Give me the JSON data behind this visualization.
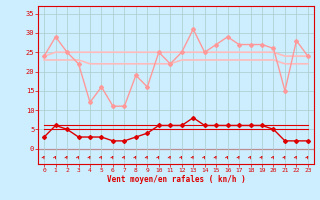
{
  "x": [
    0,
    1,
    2,
    3,
    4,
    5,
    6,
    7,
    8,
    9,
    10,
    11,
    12,
    13,
    14,
    15,
    16,
    17,
    18,
    19,
    20,
    21,
    22,
    23
  ],
  "rafales": [
    24,
    29,
    25,
    22,
    12,
    16,
    11,
    11,
    19,
    16,
    25,
    22,
    25,
    31,
    25,
    27,
    29,
    27,
    27,
    27,
    26,
    15,
    28,
    24
  ],
  "smooth_upper": [
    24,
    25,
    25,
    25,
    25,
    25,
    25,
    25,
    25,
    25,
    25,
    25,
    25,
    25,
    25,
    25,
    25,
    25,
    25,
    25,
    25,
    24,
    24,
    24
  ],
  "smooth_lower": [
    23,
    23,
    23,
    23,
    22,
    22,
    22,
    22,
    22,
    22,
    22,
    22,
    23,
    23,
    23,
    23,
    23,
    23,
    23,
    23,
    23,
    22,
    22,
    22
  ],
  "wind_avg": [
    3,
    6,
    5,
    3,
    3,
    3,
    2,
    2,
    3,
    4,
    6,
    6,
    6,
    8,
    6,
    6,
    6,
    6,
    6,
    6,
    5,
    2,
    2,
    2
  ],
  "wind_flat_upper": [
    6,
    6,
    6,
    6,
    6,
    6,
    6,
    6,
    6,
    6,
    6,
    6,
    6,
    6,
    6,
    6,
    6,
    6,
    6,
    6,
    6,
    6,
    6,
    6
  ],
  "wind_flat_lower": [
    5,
    5,
    5,
    5,
    5,
    5,
    5,
    5,
    5,
    5,
    5,
    5,
    5,
    5,
    5,
    5,
    5,
    5,
    5,
    5,
    5,
    5,
    5,
    5
  ],
  "bg_color": "#cceeff",
  "grid_color": "#aacccc",
  "dark_red": "#dd0000",
  "light_pink": "#ff9999",
  "lighter_pink": "#ffbbbb",
  "xlabel": "Vent moyen/en rafales ( kn/h )",
  "ylim": [
    -4,
    37
  ],
  "yticks": [
    0,
    5,
    10,
    15,
    20,
    25,
    30,
    35
  ],
  "xlim": [
    -0.5,
    23.5
  ]
}
